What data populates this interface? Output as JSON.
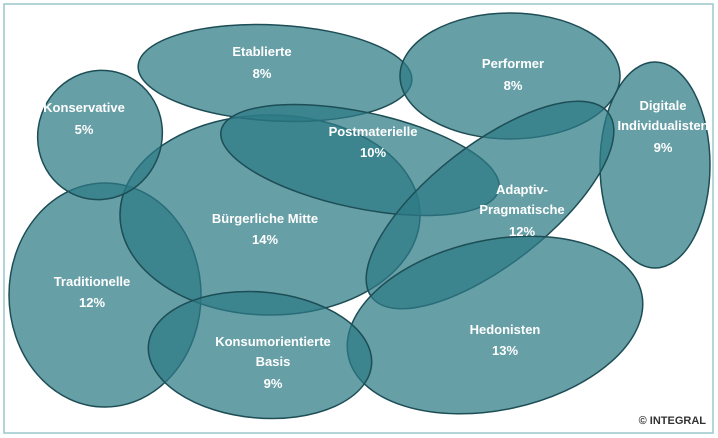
{
  "nodes": [
    {
      "label": "Konservative",
      "share": "5%"
    },
    {
      "label": "Etablierte",
      "share": "8%"
    },
    {
      "label": "Performer",
      "share": "8%"
    },
    {
      "label": "Digitale Individualisten",
      "share": "9%"
    },
    {
      "label": "Postmaterielle",
      "share": "10%"
    },
    {
      "label": "Bürgerliche Mitte",
      "share": "14%"
    },
    {
      "label": "Adaptiv-Pragmatische",
      "share": "12%"
    },
    {
      "label": "Traditionelle",
      "share": "12%"
    },
    {
      "label": "Konsumorientierte Basis",
      "share": "9%"
    },
    {
      "label": "Hedonisten",
      "share": "13%"
    }
  ],
  "copyright": "© INTEGRAL"
}
